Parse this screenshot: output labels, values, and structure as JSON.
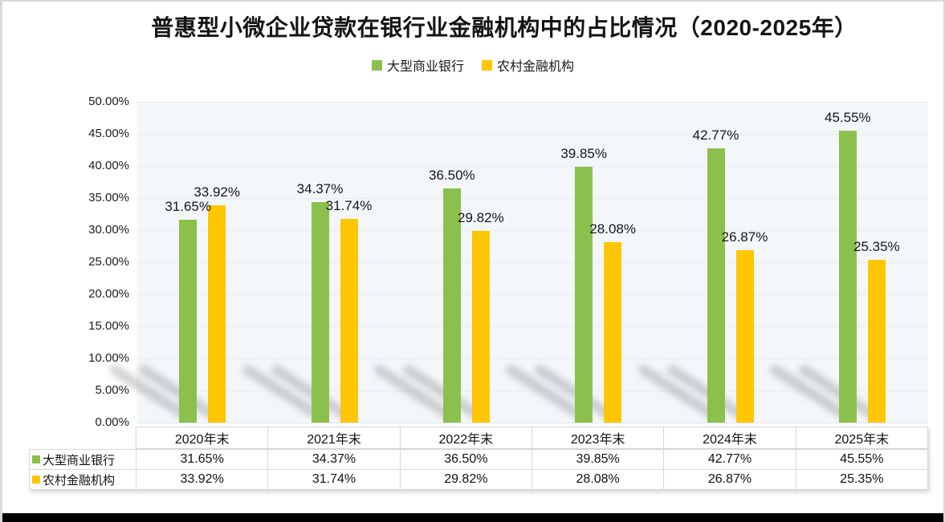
{
  "page": {
    "title": "普惠型小微企业贷款在银行业金融机构中的占比情况（2020-2025年）"
  },
  "legend": {
    "items": [
      {
        "label": "大型商业银行",
        "color": "#8CC04D"
      },
      {
        "label": "农村金融机构",
        "color": "#FFC603"
      }
    ]
  },
  "colors": {
    "series_green": "#8CC04D",
    "series_yellow": "#FFC603",
    "plot_background": "#F3F7FA",
    "grid_line": "#E8ECEF",
    "table_border": "#D8D8D8"
  },
  "chart_data": {
    "type": "bar",
    "title": "普惠型小微企业贷款在银行业金融机构中的占比情况（2020-2025年）",
    "categories": [
      "2020年末",
      "2021年末",
      "2022年末",
      "2023年末",
      "2024年末",
      "2025年末"
    ],
    "series": [
      {
        "name": "大型商业银行",
        "color": "#8CC04D",
        "values": [
          31.65,
          34.37,
          36.5,
          39.85,
          42.77,
          45.55
        ],
        "value_labels": [
          "31.65%",
          "34.37%",
          "36.50%",
          "39.85%",
          "42.77%",
          "45.55%"
        ]
      },
      {
        "name": "农村金融机构",
        "color": "#FFC603",
        "values": [
          33.92,
          31.74,
          29.82,
          28.08,
          26.87,
          25.35
        ],
        "value_labels": [
          "33.92%",
          "31.74%",
          "29.82%",
          "28.08%",
          "26.87%",
          "25.35%"
        ]
      }
    ],
    "xlabel": "",
    "ylabel": "",
    "ylim": [
      0,
      50
    ],
    "ytick_interval": 5,
    "ytick_labels": [
      "50.00%",
      "45.00%",
      "40.00%",
      "35.00%",
      "30.00%",
      "25.00%",
      "20.00%",
      "15.00%",
      "10.00%",
      "5.00%",
      "0.00%"
    ],
    "grid": true,
    "legend_position": "top",
    "data_labels_shown": true,
    "data_table_shown": true
  }
}
